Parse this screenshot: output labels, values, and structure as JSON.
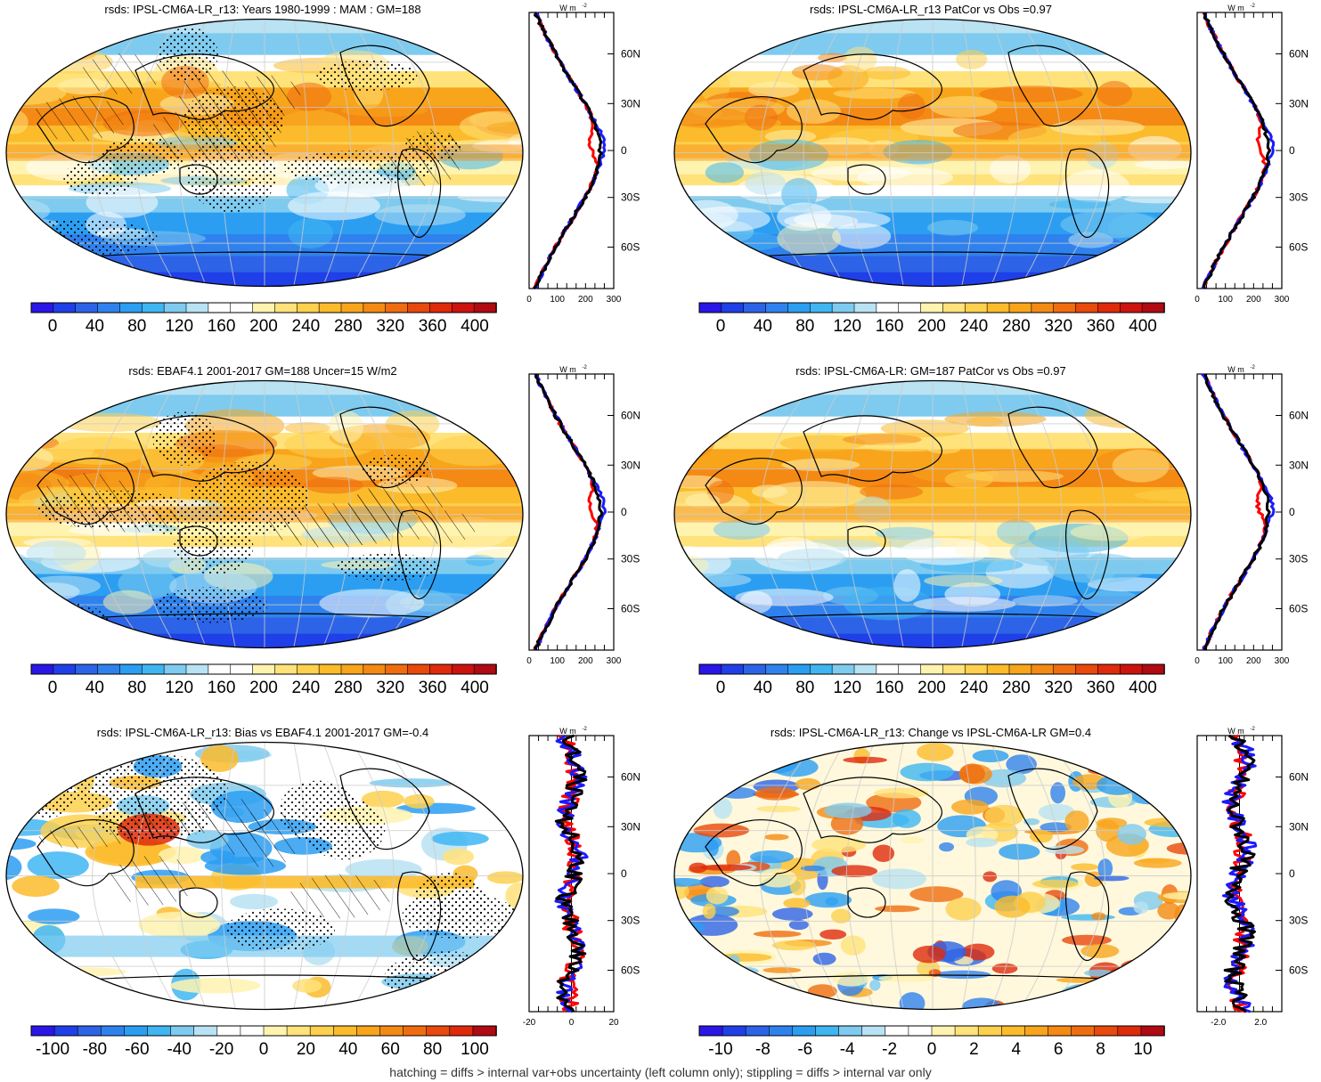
{
  "panels": [
    {
      "title": "rsds: IPSL-CM6A-LR_r13: Years 1980-1999 : MAM : GM=188",
      "colorbar": {
        "labels": [
          "0",
          "40",
          "80",
          "120",
          "160",
          "200",
          "240",
          "280",
          "320",
          "360",
          "400"
        ],
        "scheme": "full"
      },
      "zonal": {
        "unit": "W m",
        "unit_exp": "-2",
        "xticks": [
          "0",
          "100",
          "200",
          "300"
        ],
        "lat_labels": [
          "60N",
          "30N",
          "0",
          "30S",
          "60S"
        ]
      },
      "map_style": "full",
      "hatch": "both"
    },
    {
      "title": "rsds: IPSL-CM6A-LR_r13 PatCor vs Obs =0.97",
      "colorbar": {
        "labels": [
          "0",
          "40",
          "80",
          "120",
          "160",
          "200",
          "240",
          "280",
          "320",
          "360",
          "400"
        ],
        "scheme": "full"
      },
      "zonal": {
        "unit": "W m",
        "unit_exp": "-2",
        "xticks": [
          "0",
          "100",
          "200",
          "300"
        ],
        "lat_labels": [
          "60N",
          "30N",
          "0",
          "30S",
          "60S"
        ]
      },
      "map_style": "full",
      "hatch": "none"
    },
    {
      "title": "rsds: EBAF4.1 2001-2017 GM=188 Uncer=15 W/m2",
      "colorbar": {
        "labels": [
          "0",
          "40",
          "80",
          "120",
          "160",
          "200",
          "240",
          "280",
          "320",
          "360",
          "400"
        ],
        "scheme": "full"
      },
      "zonal": {
        "unit": "W m",
        "unit_exp": "-2",
        "xticks": [
          "0",
          "100",
          "200",
          "300"
        ],
        "lat_labels": [
          "60N",
          "30N",
          "0",
          "30S",
          "60S"
        ]
      },
      "map_style": "full",
      "hatch": "both"
    },
    {
      "title": "rsds: IPSL-CM6A-LR: GM=187 PatCor vs Obs =0.97",
      "colorbar": {
        "labels": [
          "0",
          "40",
          "80",
          "120",
          "160",
          "200",
          "240",
          "280",
          "320",
          "360",
          "400"
        ],
        "scheme": "full"
      },
      "zonal": {
        "unit": "W m",
        "unit_exp": "-2",
        "xticks": [
          "0",
          "100",
          "200",
          "300"
        ],
        "lat_labels": [
          "60N",
          "30N",
          "0",
          "30S",
          "60S"
        ]
      },
      "map_style": "full",
      "hatch": "none"
    },
    {
      "title": "rsds: IPSL-CM6A-LR_r13: Bias vs EBAF4.1 2001-2017 GM=-0.4",
      "colorbar": {
        "labels": [
          "-100",
          "-80",
          "-60",
          "-40",
          "-20",
          "0",
          "20",
          "40",
          "60",
          "80",
          "100"
        ],
        "scheme": "diff"
      },
      "zonal": {
        "unit": "W m",
        "unit_exp": "-2",
        "xticks": [
          "-20",
          "0",
          "20"
        ],
        "lat_labels": [
          "60N",
          "30N",
          "0",
          "30S",
          "60S"
        ]
      },
      "map_style": "bias",
      "hatch": "both"
    },
    {
      "title": "rsds: IPSL-CM6A-LR_r13: Change vs IPSL-CM6A-LR GM=0.4",
      "colorbar": {
        "labels": [
          "-10",
          "-8",
          "-6",
          "-4",
          "-2",
          "0",
          "2",
          "4",
          "6",
          "8",
          "10"
        ],
        "scheme": "diff"
      },
      "zonal": {
        "unit": "W m",
        "unit_exp": "-2",
        "xticks": [
          "-2.0",
          "2.0"
        ],
        "lat_labels": [
          "60N",
          "30N",
          "0",
          "30S",
          "60S"
        ]
      },
      "map_style": "change",
      "hatch": "none"
    }
  ],
  "colors": {
    "full": [
      "#2a16e6",
      "#1f3fe8",
      "#2d63e6",
      "#2f82ee",
      "#2b9ef2",
      "#3fb6f2",
      "#7ecbef",
      "#b9e2f3",
      "#ffffff",
      "#ffffff",
      "#fff3b0",
      "#ffe27a",
      "#fdd04d",
      "#fbbb2b",
      "#f8a51c",
      "#f48a14",
      "#ef6d0f",
      "#e8490c",
      "#df2a0b",
      "#cc130e",
      "#b00a12"
    ],
    "diff": [
      "#2a16e6",
      "#1f3fe8",
      "#2d63e6",
      "#2f82ee",
      "#2b9ef2",
      "#3fb6f2",
      "#7ecbef",
      "#b9e2f3",
      "#ffffff",
      "#ffffff",
      "#fff3b0",
      "#ffe27a",
      "#fdd04d",
      "#fbbb2b",
      "#f8a51c",
      "#f48a14",
      "#ef6d0f",
      "#e8490c",
      "#df2a0b",
      "#b00a12"
    ],
    "model_line": "#000000",
    "obs_line": "#ff0000",
    "ref_line": "#1a1aff",
    "coast": "#000000",
    "grid": "#cccccc"
  },
  "caption": "hatching = diffs > internal var+obs uncertainty (left column only); stippling = diffs > internal var only"
}
